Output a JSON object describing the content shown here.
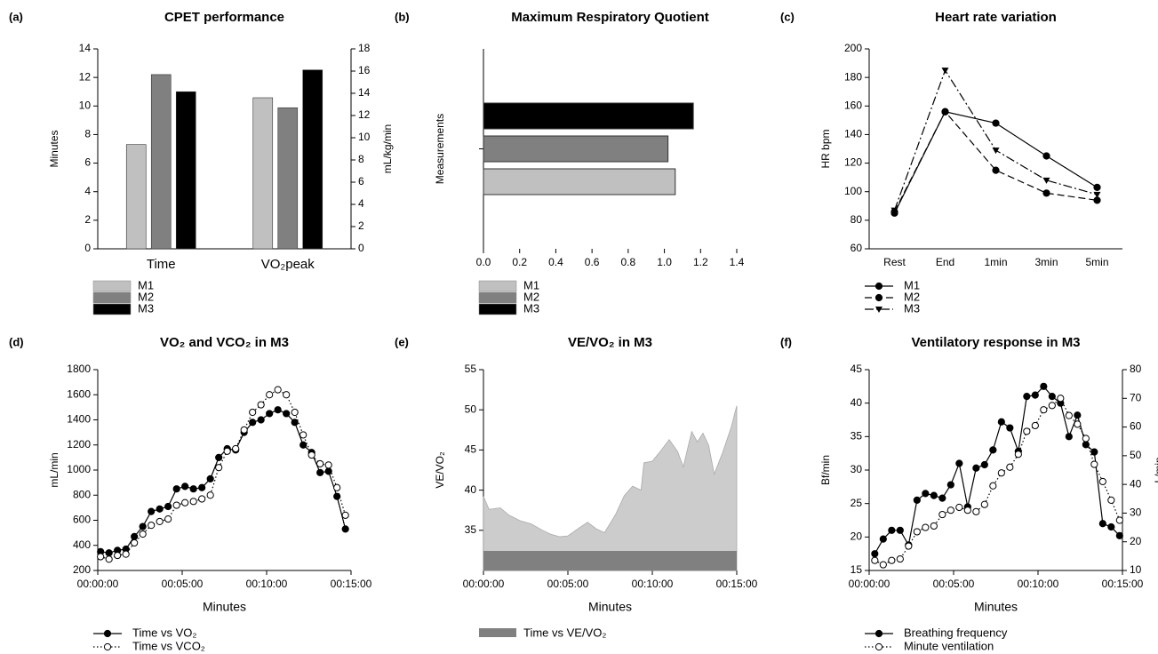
{
  "chart_data": [
    {
      "type": "bar",
      "label": "(a)",
      "title": "CPET performance",
      "ylabel": "Minutes",
      "y2label": "mL/kg/min",
      "categories": [
        "Time",
        "VO₂peak"
      ],
      "category_axes": [
        "y",
        "y2"
      ],
      "series": [
        {
          "name": "M1",
          "color": "#c0c0c0",
          "values": [
            7.3,
            13.6
          ]
        },
        {
          "name": "M2",
          "color": "#808080",
          "values": [
            12.2,
            12.7
          ]
        },
        {
          "name": "M3",
          "color": "#000000",
          "values": [
            11.0,
            16.1
          ]
        }
      ],
      "ylim": [
        0,
        14
      ],
      "yticks": [
        0,
        2,
        4,
        6,
        8,
        10,
        12,
        14
      ],
      "y2lim": [
        0,
        18
      ],
      "y2ticks": [
        0,
        2,
        4,
        6,
        8,
        10,
        12,
        14,
        16,
        18
      ]
    },
    {
      "type": "barh",
      "label": "(b)",
      "title": "Maximum Respiratory Quotient",
      "ylabel": "Measurements",
      "categories": [
        null
      ],
      "series": [
        {
          "name": "M1",
          "color": "#c0c0c0",
          "values": [
            1.06
          ]
        },
        {
          "name": "M2",
          "color": "#808080",
          "values": [
            1.02
          ]
        },
        {
          "name": "M3",
          "color": "#000000",
          "values": [
            1.16
          ]
        }
      ],
      "xlim": [
        0,
        1.4
      ],
      "xticks": [
        {
          "value": 0,
          "label": "0.0"
        },
        0.2,
        0.4,
        0.6,
        0.8,
        {
          "value": 1,
          "label": "1.0"
        },
        1.2,
        1.4
      ]
    },
    {
      "type": "line",
      "label": "(c)",
      "title": "Heart rate variation",
      "ylabel": "HR bpm",
      "categories": [
        "Rest",
        "End",
        "1min",
        "3min",
        "5min"
      ],
      "series": [
        {
          "name": "M1",
          "color": "#000000",
          "dash": "solid",
          "marker": "circle-filled",
          "values": [
            85,
            156,
            148,
            125,
            103
          ]
        },
        {
          "name": "M2",
          "color": "#000000",
          "dash": "dashed",
          "marker": "circle-filled",
          "values": [
            86,
            156,
            115,
            99,
            94
          ]
        },
        {
          "name": "M3",
          "color": "#000000",
          "dash": "dashdot",
          "marker": "triangle-down",
          "values": [
            87,
            185,
            129,
            108,
            98
          ]
        }
      ],
      "ylim": [
        60,
        200
      ],
      "yticks": [
        60,
        80,
        100,
        120,
        140,
        160,
        180,
        200
      ]
    },
    {
      "type": "line",
      "label": "(d)",
      "title": "VO₂ and VCO₂ in M3",
      "xlabel": "Minutes",
      "ylabel": "mL/min",
      "x": [
        10,
        40,
        70,
        100,
        130,
        160,
        190,
        220,
        250,
        280,
        310,
        340,
        370,
        400,
        430,
        460,
        490,
        520,
        550,
        580,
        610,
        640,
        670,
        700,
        730,
        760,
        790,
        820,
        850,
        880
      ],
      "series": [
        {
          "name": "Time vs VO₂",
          "color": "#000000",
          "dash": "solid",
          "marker": "circle-filled",
          "values": [
            350,
            340,
            360,
            370,
            470,
            550,
            670,
            690,
            710,
            850,
            870,
            850,
            860,
            930,
            1100,
            1170,
            1160,
            1300,
            1380,
            1400,
            1450,
            1480,
            1450,
            1380,
            1200,
            1140,
            980,
            990,
            790,
            530
          ]
        },
        {
          "name": "Time vs VCO₂",
          "color": "#000000",
          "dash": "dotted",
          "marker": "circle-open",
          "values": [
            310,
            290,
            320,
            330,
            420,
            490,
            560,
            590,
            610,
            720,
            740,
            750,
            770,
            800,
            1020,
            1150,
            1170,
            1320,
            1460,
            1520,
            1600,
            1640,
            1600,
            1460,
            1280,
            1120,
            1050,
            1040,
            860,
            640
          ]
        }
      ],
      "xlim": [
        0,
        900
      ],
      "xticks": [
        {
          "value": 0,
          "label": "00:00:00"
        },
        {
          "value": 300,
          "label": "00:05:00"
        },
        {
          "value": 600,
          "label": "00:10:00"
        },
        {
          "value": 900,
          "label": "00:15:00"
        }
      ],
      "ylim": [
        200,
        1800
      ],
      "yticks": [
        200,
        400,
        600,
        800,
        1000,
        1200,
        1400,
        1600,
        1800
      ]
    },
    {
      "type": "area",
      "label": "(e)",
      "title": "VE/VO₂ in M3",
      "xlabel": "Minutes",
      "ylabel": "VE/VO₂",
      "x": [
        0,
        20,
        60,
        90,
        130,
        170,
        210,
        240,
        270,
        300,
        340,
        370,
        400,
        430,
        470,
        500,
        530,
        560,
        570,
        600,
        630,
        660,
        690,
        710,
        740,
        760,
        780,
        800,
        820,
        850,
        880,
        900
      ],
      "series": [
        {
          "name": "Time vs VE/VO₂",
          "color": "#808080",
          "fill": "#cccccc",
          "values": [
            39.2,
            37.6,
            37.8,
            36.9,
            36.2,
            35.8,
            35.0,
            34.5,
            34.2,
            34.3,
            35.3,
            36.0,
            35.2,
            34.7,
            37.0,
            39.3,
            40.5,
            40.0,
            43.4,
            43.6,
            44.9,
            46.3,
            44.8,
            42.9,
            47.3,
            46.0,
            47.1,
            45.6,
            42.0,
            44.7,
            47.8,
            50.5
          ]
        }
      ],
      "xlim": [
        0,
        900
      ],
      "xticks": [
        {
          "value": 0,
          "label": "00:00:00"
        },
        {
          "value": 300,
          "label": "00:05:00"
        },
        {
          "value": 600,
          "label": "00:10:00"
        },
        {
          "value": 900,
          "label": "00:15:00"
        }
      ],
      "ylim": [
        30,
        55
      ],
      "yticks": [
        35,
        40,
        45,
        50,
        55
      ]
    },
    {
      "type": "line",
      "label": "(f)",
      "title": "Ventilatory response in M3",
      "xlabel": "Minutes",
      "ylabel": "Bf/min",
      "y2label": "L/min",
      "x": [
        20,
        50,
        80,
        110,
        140,
        170,
        200,
        230,
        260,
        290,
        320,
        350,
        380,
        410,
        440,
        470,
        500,
        530,
        560,
        590,
        620,
        650,
        680,
        710,
        740,
        770,
        800,
        830,
        860,
        890
      ],
      "series": [
        {
          "name": "Breathing frequency",
          "color": "#000000",
          "dash": "solid",
          "marker": "circle-filled",
          "values": [
            17.5,
            19.7,
            21,
            21,
            18.8,
            25.5,
            26.5,
            26.2,
            25.8,
            27.8,
            31,
            24.5,
            30.3,
            30.8,
            33,
            37.2,
            36.3,
            32.8,
            41,
            41.2,
            42.5,
            41,
            40,
            35,
            38.2,
            33.8,
            32.7,
            22,
            21.5,
            20.2
          ]
        },
        {
          "name": "Minute ventilation",
          "color": "#000000",
          "dash": "dotted",
          "marker": "circle-open",
          "axis": "y2",
          "values": [
            13.5,
            12,
            13.5,
            14,
            18.5,
            23.5,
            25,
            25.5,
            29.5,
            31,
            32,
            31,
            30.5,
            33,
            39.5,
            44,
            46,
            50.5,
            58.5,
            60.5,
            66,
            67.5,
            70,
            64,
            61,
            56,
            47,
            41,
            34.5,
            27.5
          ]
        }
      ],
      "xlim": [
        0,
        900
      ],
      "xticks": [
        {
          "value": 0,
          "label": "00:00:00"
        },
        {
          "value": 300,
          "label": "00:05:00"
        },
        {
          "value": 600,
          "label": "00:10:00"
        },
        {
          "value": 900,
          "label": "00:15:00"
        }
      ],
      "ylim": [
        15,
        45
      ],
      "yticks": [
        15,
        20,
        25,
        30,
        35,
        40,
        45
      ],
      "y2lim": [
        10,
        80
      ],
      "y2ticks": [
        10,
        20,
        30,
        40,
        50,
        60,
        70,
        80
      ]
    }
  ]
}
